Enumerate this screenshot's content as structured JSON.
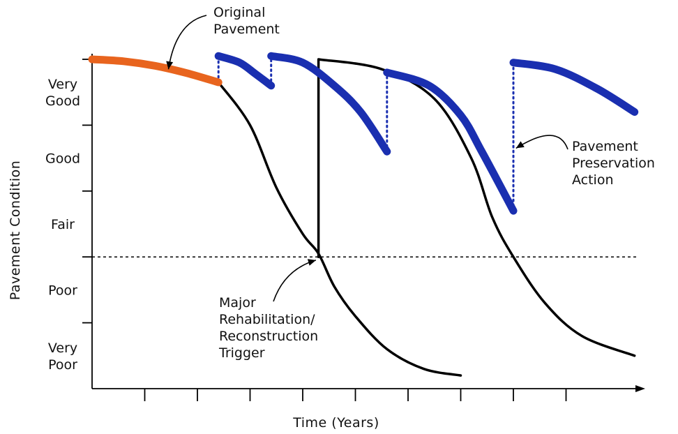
{
  "chart_data": {
    "type": "line",
    "xlabel": "Time (Years)",
    "ylabel": "Pavement Condition",
    "y_categories": [
      "Very Good",
      "Good",
      "Fair",
      "Poor",
      "Very Poor"
    ],
    "y_category_lines": [
      [
        "Very",
        "Good"
      ],
      [
        "Good"
      ],
      [
        "Fair"
      ],
      [
        "Poor"
      ],
      [
        "Very",
        "Poor"
      ]
    ],
    "ylim": [
      0,
      5
    ],
    "xlim": [
      0,
      10.4
    ],
    "x_ticks": [
      1,
      2,
      3,
      4,
      5,
      6,
      7,
      8,
      9
    ],
    "y_ticks": [
      1,
      2,
      3,
      4,
      5
    ],
    "trigger_level": 2,
    "colors": {
      "original": "#e8641e",
      "rehab": "#000000",
      "preservation": "#1a2fb0",
      "trigger": "#000000"
    },
    "series": [
      {
        "role": "original",
        "points": [
          [
            0,
            5.0
          ],
          [
            0.6,
            4.97
          ],
          [
            1.2,
            4.9
          ],
          [
            1.8,
            4.79
          ],
          [
            2.4,
            4.65
          ]
        ]
      },
      {
        "role": "rehab",
        "points": [
          [
            2.4,
            4.65
          ],
          [
            3.0,
            4.0
          ],
          [
            3.5,
            3.05
          ],
          [
            4.0,
            2.35
          ],
          [
            4.3,
            2.05
          ],
          [
            4.6,
            1.55
          ],
          [
            5.0,
            1.1
          ],
          [
            5.6,
            0.6
          ],
          [
            6.3,
            0.3
          ],
          [
            7.0,
            0.2
          ]
        ]
      },
      {
        "role": "rehab",
        "points": [
          [
            4.3,
            2.0
          ],
          [
            4.3,
            5.0
          ],
          [
            5.5,
            4.85
          ],
          [
            6.5,
            4.4
          ],
          [
            7.2,
            3.5
          ],
          [
            7.6,
            2.6
          ],
          [
            8.0,
            2.0
          ],
          [
            8.6,
            1.3
          ],
          [
            9.3,
            0.8
          ],
          [
            10.3,
            0.5
          ]
        ]
      },
      {
        "role": "preservation",
        "points": [
          [
            2.4,
            5.05
          ],
          [
            2.8,
            4.95
          ],
          [
            3.1,
            4.78
          ],
          [
            3.4,
            4.6
          ]
        ]
      },
      {
        "role": "preservation",
        "points": [
          [
            3.4,
            5.05
          ],
          [
            4.0,
            4.95
          ],
          [
            4.6,
            4.6
          ],
          [
            5.1,
            4.2
          ],
          [
            5.6,
            3.6
          ]
        ]
      },
      {
        "role": "preservation",
        "points": [
          [
            5.6,
            4.8
          ],
          [
            6.4,
            4.6
          ],
          [
            7.0,
            4.15
          ],
          [
            7.4,
            3.6
          ],
          [
            8.0,
            2.7
          ]
        ]
      },
      {
        "role": "preservation",
        "points": [
          [
            8.0,
            4.95
          ],
          [
            8.8,
            4.85
          ],
          [
            9.6,
            4.55
          ],
          [
            10.3,
            4.2
          ]
        ]
      }
    ],
    "preservation_jumps": [
      {
        "x": 2.4,
        "from": 4.65,
        "to": 5.05
      },
      {
        "x": 3.4,
        "from": 4.6,
        "to": 5.05
      },
      {
        "x": 5.6,
        "from": 3.6,
        "to": 4.8
      },
      {
        "x": 8.0,
        "from": 2.7,
        "to": 4.95
      }
    ],
    "annotations": [
      {
        "id": "original",
        "lines": [
          "Original",
          "Pavement"
        ],
        "target": [
          1.45,
          4.85
        ]
      },
      {
        "id": "preservation",
        "lines": [
          "Pavement",
          "Preservation",
          "Action"
        ],
        "target": [
          8.05,
          3.65
        ]
      },
      {
        "id": "trigger",
        "lines": [
          "Major",
          "Rehabilitation/",
          "Reconstruction",
          "Trigger"
        ],
        "target": [
          4.25,
          1.95
        ]
      }
    ]
  }
}
